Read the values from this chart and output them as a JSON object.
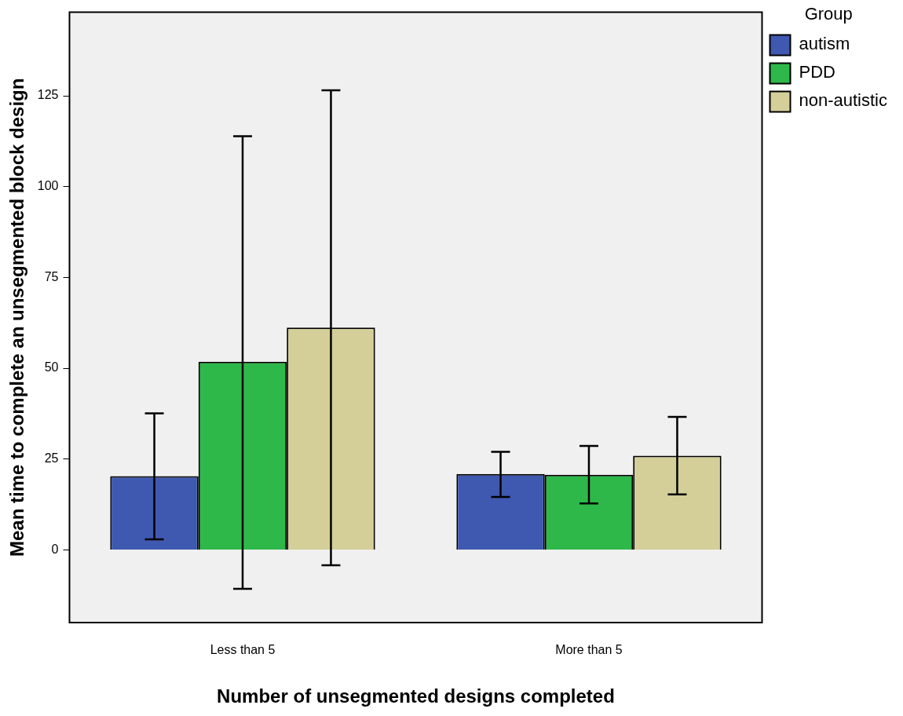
{
  "chart_data": {
    "type": "bar",
    "xlabel": "Number of unsegmented designs completed",
    "ylabel": "Mean time to complete an unsegmented block design",
    "legend_title": "Group",
    "legend": "top right",
    "grid": false,
    "categories": [
      "Less than 5",
      "More than 5"
    ],
    "ylim": [
      -20,
      148
    ],
    "yticks": [
      0,
      25,
      50,
      75,
      100,
      125
    ],
    "series": [
      {
        "name": "autism",
        "color": "#3f58b0",
        "values": [
          20.3,
          20.9
        ],
        "errors": [
          [
            2.9,
            37.6
          ],
          [
            14.6,
            27.0
          ]
        ]
      },
      {
        "name": "PDD",
        "color": "#2eb84a",
        "values": [
          51.8,
          20.7
        ],
        "errors": [
          [
            -10.7,
            113.9
          ],
          [
            12.8,
            28.6
          ]
        ]
      },
      {
        "name": "non-autistic",
        "color": "#d4cf99",
        "values": [
          61.2,
          25.9
        ],
        "errors": [
          [
            -4.2,
            126.5
          ],
          [
            15.3,
            36.6
          ]
        ]
      }
    ]
  }
}
